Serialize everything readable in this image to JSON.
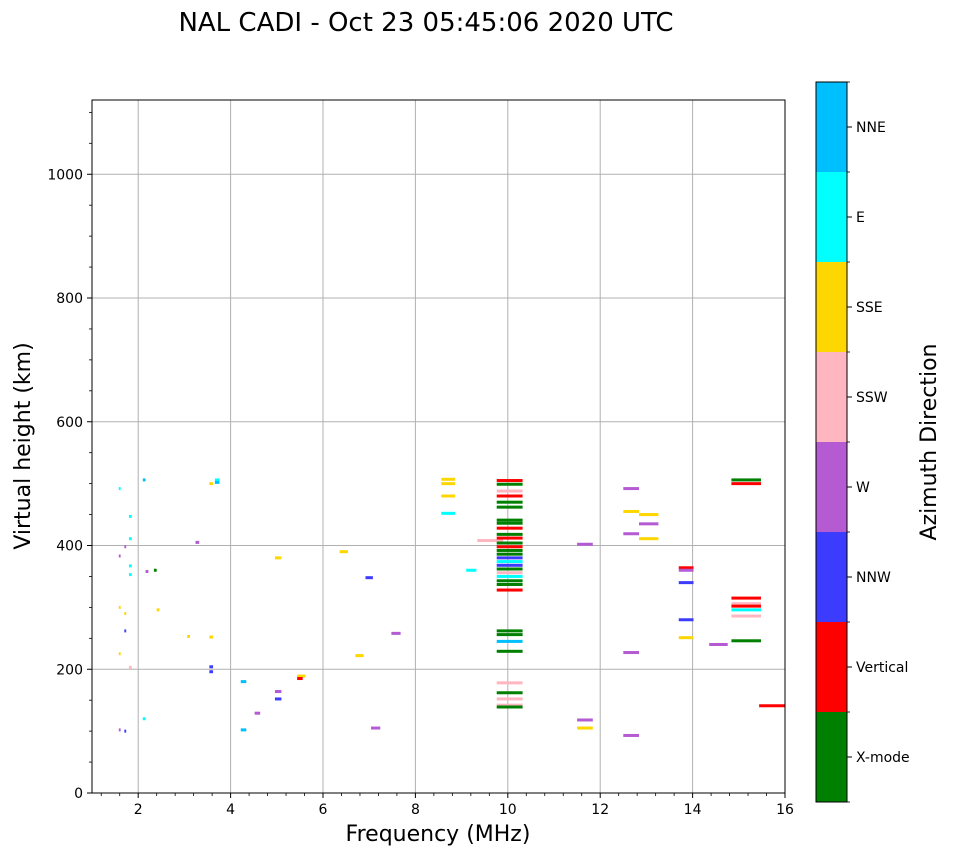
{
  "chart_data": {
    "type": "scatter",
    "title": "NAL CADI - Oct 23 05:45:06 2020 UTC",
    "xlabel": "Frequency (MHz)",
    "ylabel": "Virtual height (km)",
    "xlim": [
      1,
      16
    ],
    "ylim": [
      0,
      1120
    ],
    "xticks": [
      2,
      4,
      6,
      8,
      10,
      12,
      14,
      16
    ],
    "yticks": [
      0,
      200,
      400,
      600,
      800,
      1000
    ],
    "grid": true,
    "colorbar": {
      "label": "Azimuth Direction",
      "categories": [
        {
          "name": "X-mode",
          "color": "#008000"
        },
        {
          "name": "Vertical",
          "color": "#ff0000"
        },
        {
          "name": "NNW",
          "color": "#3c3cff"
        },
        {
          "name": "W",
          "color": "#b45ad2"
        },
        {
          "name": "SSW",
          "color": "#ffb6c1"
        },
        {
          "name": "SSE",
          "color": "#ffd700"
        },
        {
          "name": "E",
          "color": "#00ffff"
        },
        {
          "name": "NNE",
          "color": "#00bfff"
        }
      ]
    },
    "echoes": [
      {
        "x0": 1.58,
        "x1": 1.62,
        "y": 492,
        "cat": "E"
      },
      {
        "x0": 1.58,
        "x1": 1.62,
        "y": 383,
        "cat": "W"
      },
      {
        "x0": 1.58,
        "x1": 1.62,
        "y": 300,
        "cat": "SSE"
      },
      {
        "x0": 1.58,
        "x1": 1.62,
        "y": 225,
        "cat": "SSE"
      },
      {
        "x0": 1.58,
        "x1": 1.62,
        "y": 102,
        "cat": "W"
      },
      {
        "x0": 1.7,
        "x1": 1.74,
        "y": 398,
        "cat": "W"
      },
      {
        "x0": 1.7,
        "x1": 1.74,
        "y": 290,
        "cat": "SSE"
      },
      {
        "x0": 1.7,
        "x1": 1.74,
        "y": 262,
        "cat": "NNW"
      },
      {
        "x0": 1.7,
        "x1": 1.74,
        "y": 100,
        "cat": "NNW"
      },
      {
        "x0": 1.8,
        "x1": 1.86,
        "y": 447,
        "cat": "E"
      },
      {
        "x0": 1.8,
        "x1": 1.86,
        "y": 411,
        "cat": "E"
      },
      {
        "x0": 1.8,
        "x1": 1.86,
        "y": 367,
        "cat": "E"
      },
      {
        "x0": 1.8,
        "x1": 1.86,
        "y": 353,
        "cat": "E"
      },
      {
        "x0": 1.8,
        "x1": 1.86,
        "y": 203,
        "cat": "SSW"
      },
      {
        "x0": 2.1,
        "x1": 2.16,
        "y": 506,
        "cat": "NNE"
      },
      {
        "x0": 2.1,
        "x1": 2.16,
        "y": 120,
        "cat": "E"
      },
      {
        "x0": 2.16,
        "x1": 2.22,
        "y": 358,
        "cat": "W"
      },
      {
        "x0": 2.34,
        "x1": 2.4,
        "y": 360,
        "cat": "X-mode"
      },
      {
        "x0": 2.4,
        "x1": 2.46,
        "y": 296,
        "cat": "SSE"
      },
      {
        "x0": 3.06,
        "x1": 3.12,
        "y": 253,
        "cat": "SSE"
      },
      {
        "x0": 3.24,
        "x1": 3.32,
        "y": 405,
        "cat": "W"
      },
      {
        "x0": 3.54,
        "x1": 3.62,
        "y": 500,
        "cat": "SSE"
      },
      {
        "x0": 3.54,
        "x1": 3.62,
        "y": 252,
        "cat": "SSE"
      },
      {
        "x0": 3.54,
        "x1": 3.62,
        "y": 204,
        "cat": "NNW"
      },
      {
        "x0": 3.54,
        "x1": 3.62,
        "y": 196,
        "cat": "NNW"
      },
      {
        "x0": 3.66,
        "x1": 3.76,
        "y": 506,
        "cat": "E"
      },
      {
        "x0": 3.66,
        "x1": 3.76,
        "y": 502,
        "cat": "NNE"
      },
      {
        "x0": 4.22,
        "x1": 4.34,
        "y": 180,
        "cat": "NNE"
      },
      {
        "x0": 4.22,
        "x1": 4.34,
        "y": 102,
        "cat": "NNE"
      },
      {
        "x0": 4.52,
        "x1": 4.64,
        "y": 129,
        "cat": "W"
      },
      {
        "x0": 4.96,
        "x1": 5.1,
        "y": 380,
        "cat": "SSE"
      },
      {
        "x0": 4.96,
        "x1": 5.1,
        "y": 164,
        "cat": "W"
      },
      {
        "x0": 4.96,
        "x1": 5.1,
        "y": 152,
        "cat": "NNW"
      },
      {
        "x0": 5.44,
        "x1": 5.62,
        "y": 189,
        "cat": "SSE"
      },
      {
        "x0": 5.44,
        "x1": 5.56,
        "y": 185,
        "cat": "Vertical"
      },
      {
        "x0": 6.36,
        "x1": 6.54,
        "y": 390,
        "cat": "SSE"
      },
      {
        "x0": 6.7,
        "x1": 6.88,
        "y": 222,
        "cat": "SSE"
      },
      {
        "x0": 6.92,
        "x1": 7.08,
        "y": 348,
        "cat": "NNW"
      },
      {
        "x0": 7.04,
        "x1": 7.24,
        "y": 105,
        "cat": "W"
      },
      {
        "x0": 7.48,
        "x1": 7.68,
        "y": 258,
        "cat": "W"
      },
      {
        "x0": 8.56,
        "x1": 8.86,
        "y": 507,
        "cat": "SSE"
      },
      {
        "x0": 8.56,
        "x1": 8.86,
        "y": 500,
        "cat": "SSE"
      },
      {
        "x0": 8.56,
        "x1": 8.86,
        "y": 480,
        "cat": "SSE"
      },
      {
        "x0": 8.56,
        "x1": 8.86,
        "y": 452,
        "cat": "E"
      },
      {
        "x0": 9.1,
        "x1": 9.32,
        "y": 360,
        "cat": "E"
      },
      {
        "x0": 9.34,
        "x1": 9.9,
        "y": 408,
        "cat": "SSW"
      },
      {
        "x0": 9.76,
        "x1": 10.32,
        "y": 505,
        "cat": "Vertical"
      },
      {
        "x0": 9.76,
        "x1": 10.32,
        "y": 499,
        "cat": "X-mode"
      },
      {
        "x0": 9.76,
        "x1": 10.32,
        "y": 488,
        "cat": "SSW"
      },
      {
        "x0": 9.76,
        "x1": 10.32,
        "y": 480,
        "cat": "Vertical"
      },
      {
        "x0": 9.76,
        "x1": 10.32,
        "y": 470,
        "cat": "X-mode"
      },
      {
        "x0": 9.76,
        "x1": 10.32,
        "y": 462,
        "cat": "X-mode"
      },
      {
        "x0": 9.76,
        "x1": 10.32,
        "y": 441,
        "cat": "X-mode"
      },
      {
        "x0": 9.76,
        "x1": 10.32,
        "y": 436,
        "cat": "X-mode"
      },
      {
        "x0": 9.76,
        "x1": 10.32,
        "y": 428,
        "cat": "Vertical"
      },
      {
        "x0": 9.76,
        "x1": 10.32,
        "y": 418,
        "cat": "X-mode"
      },
      {
        "x0": 9.76,
        "x1": 10.32,
        "y": 412,
        "cat": "Vertical"
      },
      {
        "x0": 9.76,
        "x1": 10.32,
        "y": 404,
        "cat": "X-mode"
      },
      {
        "x0": 9.76,
        "x1": 10.32,
        "y": 398,
        "cat": "Vertical"
      },
      {
        "x0": 9.76,
        "x1": 10.32,
        "y": 392,
        "cat": "X-mode"
      },
      {
        "x0": 9.76,
        "x1": 10.32,
        "y": 386,
        "cat": "X-mode"
      },
      {
        "x0": 9.76,
        "x1": 10.32,
        "y": 380,
        "cat": "NNW"
      },
      {
        "x0": 9.76,
        "x1": 10.32,
        "y": 374,
        "cat": "E"
      },
      {
        "x0": 9.76,
        "x1": 10.32,
        "y": 368,
        "cat": "NNW"
      },
      {
        "x0": 9.76,
        "x1": 10.32,
        "y": 362,
        "cat": "X-mode"
      },
      {
        "x0": 9.76,
        "x1": 10.32,
        "y": 356,
        "cat": "SSW"
      },
      {
        "x0": 9.76,
        "x1": 10.32,
        "y": 350,
        "cat": "E"
      },
      {
        "x0": 9.76,
        "x1": 10.32,
        "y": 343,
        "cat": "X-mode"
      },
      {
        "x0": 9.76,
        "x1": 10.32,
        "y": 337,
        "cat": "X-mode"
      },
      {
        "x0": 9.76,
        "x1": 10.32,
        "y": 328,
        "cat": "Vertical"
      },
      {
        "x0": 9.76,
        "x1": 10.32,
        "y": 262,
        "cat": "X-mode"
      },
      {
        "x0": 9.76,
        "x1": 10.32,
        "y": 256,
        "cat": "X-mode"
      },
      {
        "x0": 9.76,
        "x1": 10.32,
        "y": 245,
        "cat": "NNE"
      },
      {
        "x0": 9.76,
        "x1": 10.32,
        "y": 229,
        "cat": "X-mode"
      },
      {
        "x0": 9.76,
        "x1": 10.32,
        "y": 178,
        "cat": "SSW"
      },
      {
        "x0": 9.76,
        "x1": 10.32,
        "y": 162,
        "cat": "X-mode"
      },
      {
        "x0": 9.76,
        "x1": 10.32,
        "y": 152,
        "cat": "SSW"
      },
      {
        "x0": 9.76,
        "x1": 10.32,
        "y": 142,
        "cat": "SSW"
      },
      {
        "x0": 9.76,
        "x1": 10.32,
        "y": 139,
        "cat": "X-mode"
      },
      {
        "x0": 11.5,
        "x1": 11.84,
        "y": 402,
        "cat": "W"
      },
      {
        "x0": 11.5,
        "x1": 11.84,
        "y": 118,
        "cat": "W"
      },
      {
        "x0": 11.5,
        "x1": 11.84,
        "y": 105,
        "cat": "SSE"
      },
      {
        "x0": 12.5,
        "x1": 12.84,
        "y": 492,
        "cat": "W"
      },
      {
        "x0": 12.5,
        "x1": 12.84,
        "y": 455,
        "cat": "SSE"
      },
      {
        "x0": 12.5,
        "x1": 12.84,
        "y": 419,
        "cat": "W"
      },
      {
        "x0": 12.5,
        "x1": 12.84,
        "y": 227,
        "cat": "W"
      },
      {
        "x0": 12.5,
        "x1": 12.84,
        "y": 93,
        "cat": "W"
      },
      {
        "x0": 12.84,
        "x1": 13.26,
        "y": 450,
        "cat": "SSE"
      },
      {
        "x0": 12.84,
        "x1": 13.26,
        "y": 435,
        "cat": "W"
      },
      {
        "x0": 12.84,
        "x1": 13.26,
        "y": 411,
        "cat": "SSE"
      },
      {
        "x0": 13.7,
        "x1": 14.02,
        "y": 364,
        "cat": "Vertical"
      },
      {
        "x0": 13.7,
        "x1": 14.02,
        "y": 360,
        "cat": "W"
      },
      {
        "x0": 13.7,
        "x1": 14.02,
        "y": 340,
        "cat": "NNW"
      },
      {
        "x0": 13.7,
        "x1": 14.02,
        "y": 280,
        "cat": "NNW"
      },
      {
        "x0": 13.7,
        "x1": 14.02,
        "y": 251,
        "cat": "SSE"
      },
      {
        "x0": 14.36,
        "x1": 14.76,
        "y": 240,
        "cat": "W"
      },
      {
        "x0": 14.84,
        "x1": 15.48,
        "y": 506,
        "cat": "X-mode"
      },
      {
        "x0": 14.84,
        "x1": 15.48,
        "y": 500,
        "cat": "Vertical"
      },
      {
        "x0": 14.84,
        "x1": 15.48,
        "y": 315,
        "cat": "Vertical"
      },
      {
        "x0": 14.84,
        "x1": 15.48,
        "y": 306,
        "cat": "SSW"
      },
      {
        "x0": 14.84,
        "x1": 15.48,
        "y": 302,
        "cat": "Vertical"
      },
      {
        "x0": 14.84,
        "x1": 15.48,
        "y": 296,
        "cat": "E"
      },
      {
        "x0": 14.84,
        "x1": 15.48,
        "y": 286,
        "cat": "SSW"
      },
      {
        "x0": 14.84,
        "x1": 15.48,
        "y": 246,
        "cat": "X-mode"
      },
      {
        "x0": 15.44,
        "x1": 16.0,
        "y": 141,
        "cat": "Vertical"
      }
    ]
  }
}
